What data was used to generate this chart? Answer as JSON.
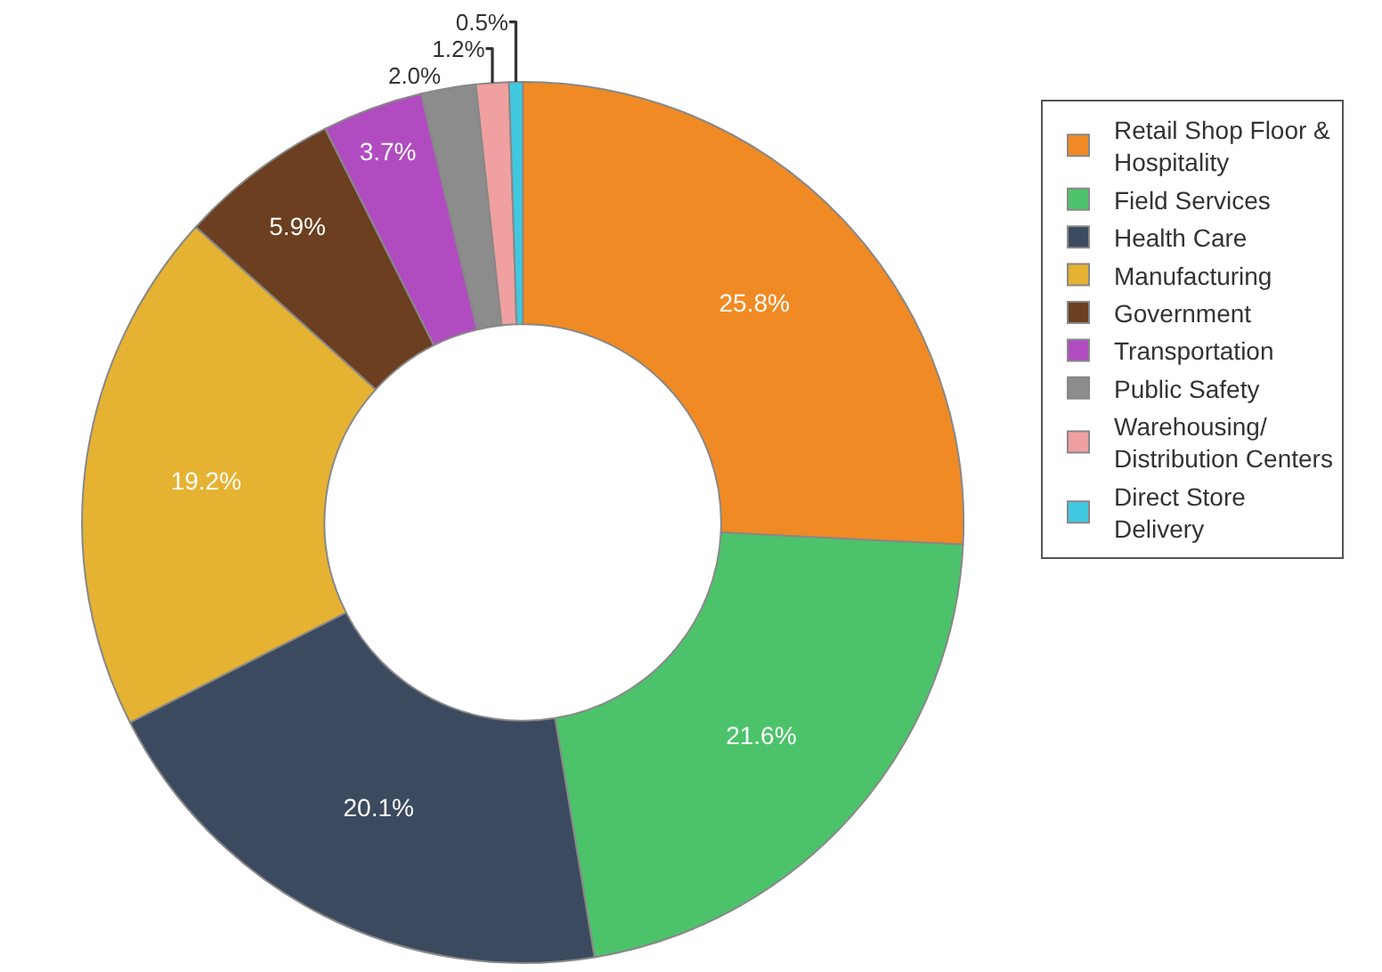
{
  "chart_data": {
    "type": "donut",
    "categories": [
      "Retail Shop Floor & Hospitality",
      "Field Services",
      "Health Care",
      "Manufacturing",
      "Government",
      "Transportation",
      "Public Safety",
      "Warehousing/ Distribution Centers",
      "Direct Store Delivery"
    ],
    "values": [
      25.8,
      21.6,
      20.1,
      19.2,
      5.9,
      3.7,
      2.0,
      1.2,
      0.5
    ],
    "value_labels": [
      "25.8%",
      "21.6%",
      "20.1%",
      "19.2%",
      "5.9%",
      "3.7%",
      "2.0%",
      "1.2%",
      "0.5%"
    ],
    "colors": [
      "#f08a24",
      "#4cc36a",
      "#3b4a5e",
      "#e6b232",
      "#6b3f1f",
      "#b04cc0",
      "#8c8c8c",
      "#f0a0a0",
      "#40c8e0"
    ],
    "legend": "right"
  }
}
